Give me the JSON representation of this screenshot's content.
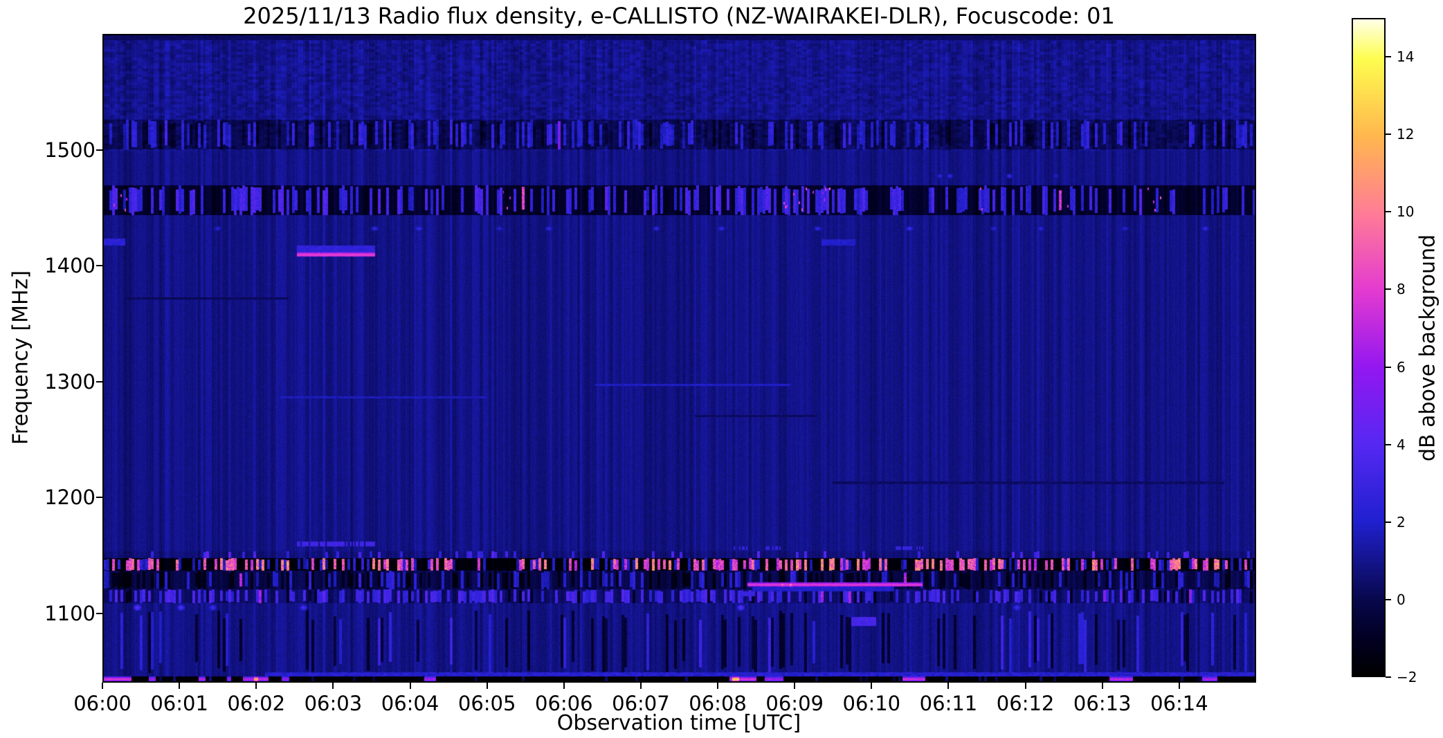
{
  "figure": {
    "title": "2025/11/13  Radio flux density, e-CALLISTO (NZ-WAIRAKEI-DLR), Focuscode: 01",
    "xlabel": "Observation time [UTC]",
    "ylabel": "Frequency [MHz]",
    "colorbar_label": "dB above background",
    "date": "2025/11/13",
    "instrument": "e-CALLISTO (NZ-WAIRAKEI-DLR)",
    "focuscode": "01"
  },
  "chart_data": {
    "type": "heatmap",
    "title": "2025/11/13  Radio flux density, e-CALLISTO (NZ-WAIRAKEI-DLR), Focuscode: 01",
    "xlabel": "Observation time [UTC]",
    "ylabel": "Frequency [MHz]",
    "x_ticks": [
      "06:00",
      "06:01",
      "06:02",
      "06:03",
      "06:04",
      "06:05",
      "06:06",
      "06:07",
      "06:08",
      "06:09",
      "06:10",
      "06:11",
      "06:12",
      "06:13",
      "06:14"
    ],
    "x_range_minutes": [
      0,
      15
    ],
    "y_ticks_mhz": [
      1500,
      1400,
      1300,
      1200,
      1100
    ],
    "freq_range_mhz": [
      1040,
      1600
    ],
    "value_range_db": [
      -2,
      15
    ],
    "background_level_db": 0.9,
    "grid": false,
    "legend_position": "none",
    "colorbar": {
      "label": "dB above background",
      "tick_values": [
        -2,
        0,
        2,
        4,
        6,
        8,
        10,
        12,
        14
      ],
      "tick_labels": [
        "−2",
        "0",
        "2",
        "4",
        "6",
        "8",
        "10",
        "12",
        "14"
      ]
    },
    "colormap": [
      {
        "pos": 0.0,
        "color": "#000000"
      },
      {
        "pos": 0.06,
        "color": "#020024"
      },
      {
        "pos": 0.118,
        "color": "#08084e"
      },
      {
        "pos": 0.235,
        "color": "#2020cf"
      },
      {
        "pos": 0.353,
        "color": "#5628f2"
      },
      {
        "pos": 0.47,
        "color": "#9317f0"
      },
      {
        "pos": 0.588,
        "color": "#e43bd0"
      },
      {
        "pos": 0.706,
        "color": "#ff7d95"
      },
      {
        "pos": 0.824,
        "color": "#ffb84d"
      },
      {
        "pos": 0.94,
        "color": "#fdfd4f"
      },
      {
        "pos": 1.0,
        "color": "#ffffe8"
      }
    ],
    "features": [
      {
        "kind": "hline",
        "name": "top-dark-strip",
        "t0": 0,
        "t1": 15,
        "f0": 1596,
        "f1": 1600,
        "db": 0.3,
        "jit": 0.5
      },
      {
        "kind": "texture_band",
        "name": "speckle-band-1501-1527",
        "f0": 1501,
        "f1": 1527,
        "base": -0.9,
        "bp": 0.35,
        "badd": [
          1.5,
          2.8
        ],
        "dp": 0.15,
        "dadd": -0.9,
        "hp": 0.002,
        "hdb": [
          5,
          6.5
        ]
      },
      {
        "kind": "texture_band",
        "name": "rfi-band-1444-1470",
        "f0": 1444,
        "f1": 1470,
        "base": -1.7,
        "bp": 0.42,
        "badd": [
          2.8,
          4.6
        ],
        "dp": 0.1,
        "dadd": -0.3,
        "hp": 0.012,
        "hdb": [
          6,
          8.5
        ]
      },
      {
        "kind": "texture_band",
        "name": "blue-row-1147-1153",
        "f0": 1147,
        "f1": 1153,
        "base": -0.2,
        "bp": 0.12,
        "badd": [
          1.8,
          3.2
        ],
        "dp": 0,
        "dadd": 0,
        "hp": 0,
        "hdb": [
          0,
          0
        ]
      },
      {
        "kind": "texture_band",
        "name": "pink-rfi-band-1136-1147",
        "f0": 1136,
        "f1": 1147,
        "base": -2.6,
        "bp": 0.2,
        "badd": [
          2.8,
          4.5
        ],
        "dp": 0,
        "dadd": 0,
        "hp": 0.32,
        "hdb": [
          7,
          10.5
        ]
      },
      {
        "kind": "texture_band",
        "name": "dark-band-1120-1136",
        "f0": 1120,
        "f1": 1136,
        "base": -1.0,
        "bp": 0.18,
        "badd": [
          1.6,
          2.8
        ],
        "dp": 0.25,
        "dadd": -1.2,
        "hp": 0.004,
        "hdb": [
          5.5,
          7
        ]
      },
      {
        "kind": "texture_band",
        "name": "blue-band-1108-1120",
        "f0": 1108,
        "f1": 1120,
        "base": -0.5,
        "bp": 0.42,
        "badd": [
          2.0,
          3.4
        ],
        "dp": 0.08,
        "dadd": -1.2,
        "hp": 0.008,
        "hdb": [
          5.5,
          7.5
        ]
      },
      {
        "kind": "texture_band",
        "name": "bottom-noise-zone",
        "f0": 1047,
        "f1": 1102,
        "base": 0,
        "bp": 0.06,
        "badd": [
          1.2,
          2.2
        ],
        "dp": 0.1,
        "dadd": -1.5,
        "hp": 0.002,
        "hdb": [
          5,
          6.5
        ]
      },
      {
        "kind": "texture_band",
        "name": "bottom-black-band",
        "f0": 1040,
        "f1": 1044,
        "base": -2.9,
        "bp": 0.06,
        "badd": [
          1.5,
          2.5
        ],
        "dp": 0,
        "dadd": 0,
        "hp": 0.003,
        "hdb": [
          6,
          8
        ]
      },
      {
        "kind": "hline",
        "name": "faint-dark-line-1372",
        "t0": 0.3,
        "t1": 2.4,
        "f0": 1371,
        "f1": 1373,
        "db": 0.15,
        "jit": 0.5
      },
      {
        "kind": "hline",
        "name": "faint-light-line-1296",
        "t0": 6.4,
        "t1": 8.95,
        "f0": 1296,
        "f1": 1298,
        "db": 1.9,
        "jit": 0.7
      },
      {
        "kind": "hline",
        "name": "faint-light-line-1286",
        "t0": 2.3,
        "t1": 5.0,
        "f0": 1285,
        "f1": 1287,
        "db": 1.7,
        "jit": 0.7
      },
      {
        "kind": "hline",
        "name": "faint-dark-line-1270",
        "t0": 7.7,
        "t1": 9.3,
        "f0": 1269,
        "f1": 1271,
        "db": 0.3,
        "jit": 0.5
      },
      {
        "kind": "hline",
        "name": "faint-dark-line-1212",
        "t0": 9.5,
        "t1": 14.6,
        "f0": 1211,
        "f1": 1213,
        "db": 0.35,
        "jit": 0.5
      },
      {
        "kind": "hline",
        "name": "blue-patch-1420-left-edge",
        "t0": 0,
        "t1": 0.28,
        "f0": 1418,
        "f1": 1424,
        "db": 2.4,
        "jit": 0.8
      },
      {
        "kind": "hline",
        "name": "blue-patch-1420-0935",
        "t0": 9.35,
        "t1": 9.8,
        "f0": 1418,
        "f1": 1423,
        "db": 2.0,
        "jit": 0.8
      },
      {
        "kind": "hline",
        "name": "glow-above-1410-line",
        "t0": 2.52,
        "t1": 3.54,
        "f0": 1412,
        "f1": 1418,
        "db": 2.6,
        "jit": 0.8
      },
      {
        "kind": "hline",
        "name": "bright-magenta-line-1410",
        "t0": 2.52,
        "t1": 3.54,
        "f0": 1408,
        "f1": 1412,
        "db": 6.8,
        "core": 7.8,
        "jit": 0.8
      },
      {
        "kind": "dashline",
        "name": "blue-dash-line-1158",
        "f0": 1157,
        "f1": 1161,
        "db": 3.2,
        "prob": 0.7,
        "segs": [
          [
            2.52,
            3.54
          ]
        ]
      },
      {
        "kind": "dashline",
        "name": "blue-dash-line-1155",
        "f0": 1154,
        "f1": 1157,
        "db": 2.8,
        "prob": 0.6,
        "segs": [
          [
            8.2,
            8.4
          ],
          [
            8.6,
            8.85
          ],
          [
            10.3,
            10.7
          ]
        ]
      },
      {
        "kind": "hline",
        "name": "bright-magenta-line-1124",
        "t0": 8.39,
        "t1": 10.67,
        "f0": 1122,
        "f1": 1126,
        "db": 6.3,
        "core": 7.5,
        "jit": 0.8
      },
      {
        "kind": "hline",
        "name": "glow-below-1124-line",
        "t0": 8.45,
        "t1": 10.3,
        "f0": 1118,
        "f1": 1122,
        "db": 2.0,
        "jit": 0.8
      },
      {
        "kind": "hline",
        "name": "blue-patch-1116",
        "t0": 8.32,
        "t1": 8.49,
        "f0": 1114,
        "f1": 1118,
        "db": 3.0,
        "jit": 0.6
      },
      {
        "kind": "hline",
        "name": "blue-blob-1092",
        "t0": 9.74,
        "t1": 10.07,
        "f0": 1088,
        "f1": 1096,
        "db": 3.4,
        "jit": 0.7
      },
      {
        "kind": "hline",
        "name": "bottom-glow-row-1045",
        "t0": 2.1,
        "t1": 15,
        "f0": 1044,
        "f1": 1047.5,
        "db": 2.2,
        "jit": 1.4
      },
      {
        "kind": "dots",
        "name": "violet-dots-1433",
        "f": 1433,
        "fw": 3,
        "px": 5,
        "db": [
          2.3,
          3.5
        ],
        "ts": [
          1.48,
          3.53,
          4.1,
          5.15,
          5.8,
          7.2,
          8.05,
          9.3,
          10.5,
          11.6,
          12.2,
          13.3,
          14.35
        ]
      },
      {
        "kind": "dots",
        "name": "blue-dots-1478",
        "f": 1478,
        "fw": 3,
        "px": 4,
        "db": [
          2.2,
          3.2
        ],
        "ts": [
          10.9,
          11.02,
          11.8,
          12.4
        ]
      },
      {
        "kind": "dots",
        "name": "purple-dots-1104",
        "f": 1104,
        "fw": 4,
        "px": 5,
        "db": [
          3.5,
          5
        ],
        "ts": [
          0.43,
          1.0,
          1.42,
          2.6,
          8.3,
          11.9
        ]
      },
      {
        "kind": "hot_cluster",
        "name": "pink-speckle-clusters-rfi-band",
        "f0": 1446,
        "f1": 1468,
        "prob": 0.3,
        "db": [
          6.5,
          8.5
        ],
        "segs": [
          [
            0.08,
            0.38
          ],
          [
            5.2,
            5.32
          ],
          [
            8.85,
            9.02
          ],
          [
            9.05,
            9.5
          ],
          [
            11.35,
            11.5
          ],
          [
            12.45,
            12.6
          ],
          [
            13.6,
            13.82
          ]
        ]
      },
      {
        "kind": "dots",
        "name": "orange-sparks-on-1124-line",
        "f": 1124,
        "fw": 3,
        "px": 4,
        "db": [
          10.5,
          11.5
        ],
        "ts": [
          8.84,
          8.95
        ]
      },
      {
        "kind": "bottom_segments",
        "name": "bottom-bright-segments",
        "f0": 1040,
        "f1": 1044,
        "segs": [
          [
            0.0,
            0.36,
            8.5
          ],
          [
            0.59,
            0.68,
            7
          ],
          [
            1.24,
            1.33,
            7.5
          ],
          [
            1.61,
            1.66,
            6.5
          ],
          [
            1.81,
            1.96,
            7.5
          ],
          [
            1.96,
            2.01,
            13
          ],
          [
            2.01,
            2.15,
            8
          ],
          [
            2.32,
            2.42,
            6.5
          ],
          [
            4.18,
            4.33,
            7
          ],
          [
            8.15,
            8.19,
            8
          ],
          [
            8.19,
            8.28,
            14
          ],
          [
            8.28,
            8.51,
            8.5
          ],
          [
            8.61,
            8.86,
            6.8
          ],
          [
            10.41,
            10.71,
            8.2
          ],
          [
            13.11,
            13.41,
            7.8
          ],
          [
            14.31,
            14.51,
            7.2
          ]
        ]
      }
    ]
  }
}
